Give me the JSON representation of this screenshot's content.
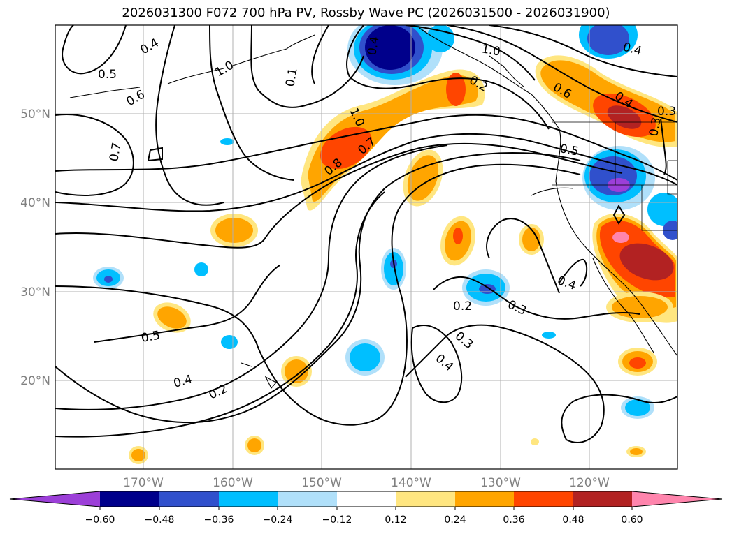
{
  "title": "2026031300 F072 700 hPa PV, Rossby Wave PC (2026031500 - 2026031900)",
  "map": {
    "lat_labels": [
      "50°N",
      "40°N",
      "30°N",
      "20°N"
    ],
    "lon_labels": [
      "170°W",
      "160°W",
      "150°W",
      "140°W",
      "130°W",
      "120°W"
    ],
    "contour_labels": [
      "0.4",
      "0.5",
      "0.6",
      "1.0",
      "0.7",
      "0.4",
      "0.5",
      "0.2",
      "0.4",
      "1.0",
      "0.8",
      "0.7",
      "1.0",
      "0.6",
      "0.4",
      "0.5",
      "0.3",
      "0.3",
      "0.4",
      "0.2",
      "0.3",
      "0.3",
      "0.4",
      "0.4",
      "0.1",
      "0.2"
    ]
  },
  "colorbar": {
    "labels": [
      "−0.60",
      "−0.48",
      "−0.36",
      "−0.24",
      "−0.12",
      "0.12",
      "0.24",
      "0.36",
      "0.48",
      "0.60"
    ],
    "colors": {
      "under": "#9c3fd8",
      "bins": [
        "#00008b",
        "#3050cc",
        "#00bfff",
        "#b0e0fa",
        "#ffffff",
        "#ffe680",
        "#ffa500",
        "#ff4500",
        "#b22222"
      ],
      "over": "#ff85ad"
    }
  }
}
